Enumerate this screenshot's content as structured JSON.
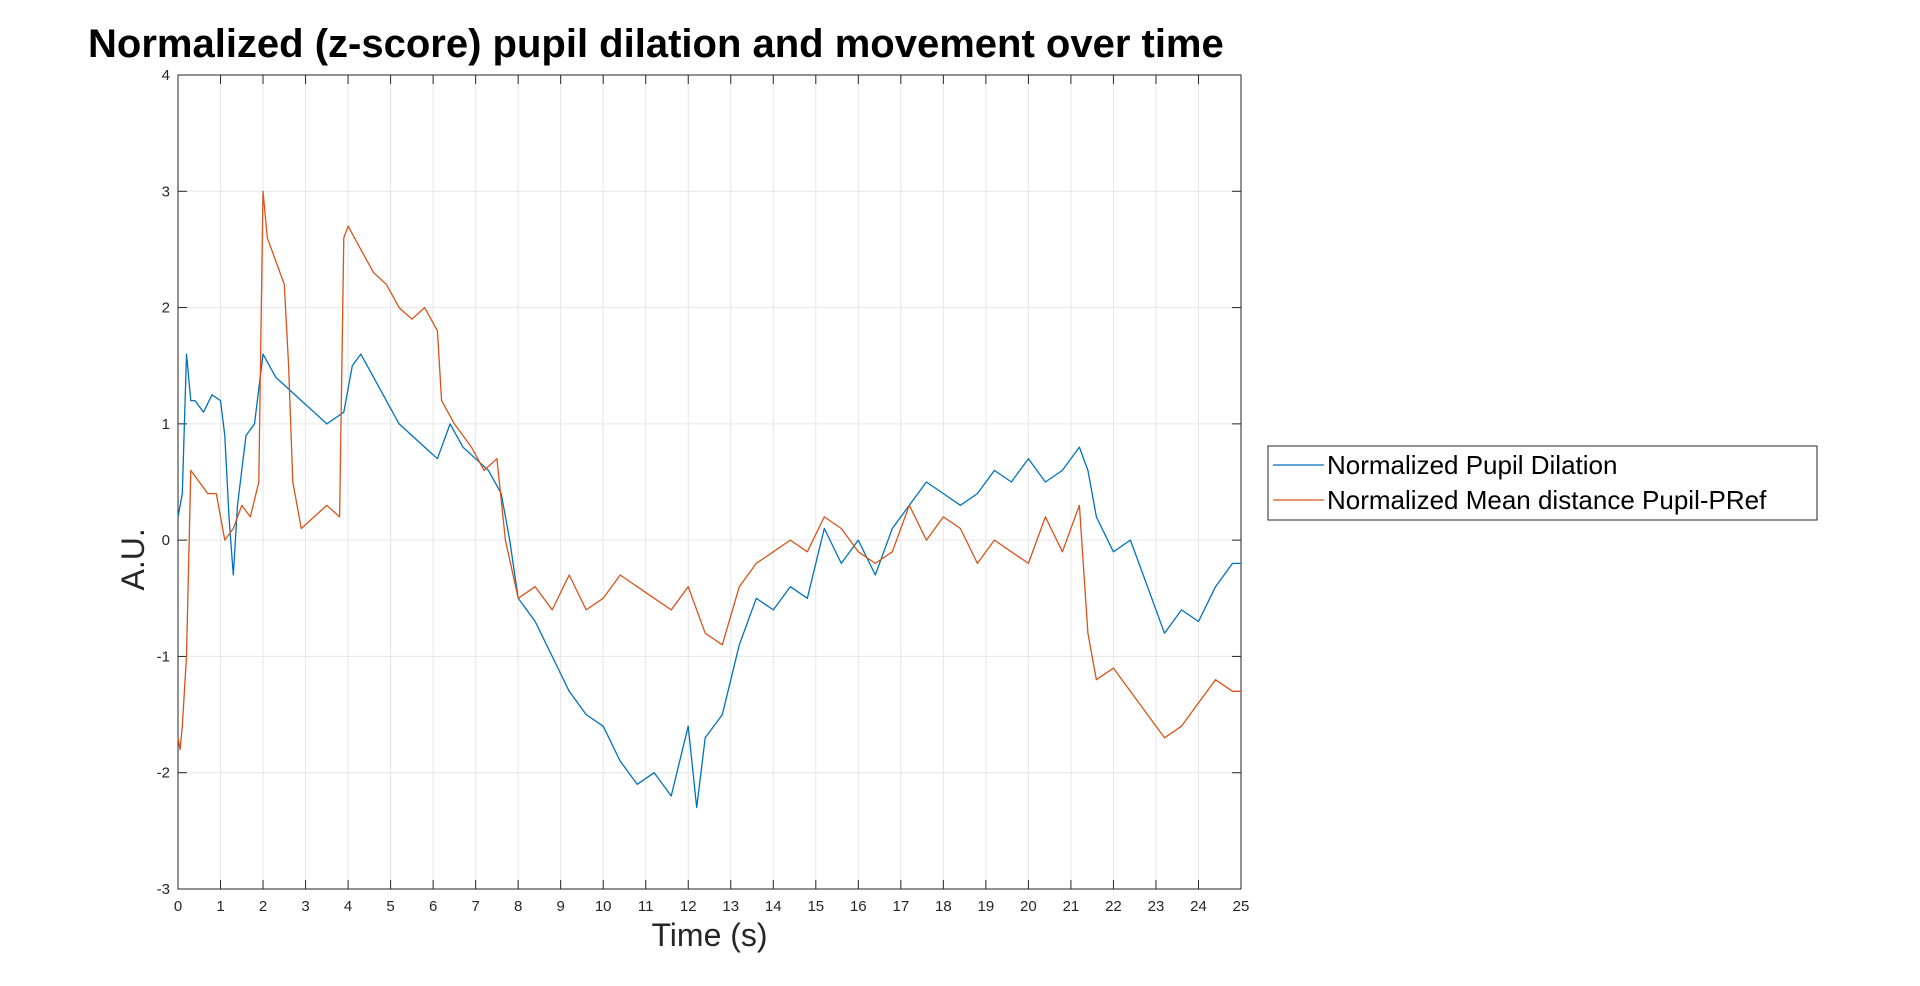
{
  "chart_data": {
    "type": "line",
    "title": "Normalized (z-score) pupil dilation and movement over time",
    "xlabel": "Time (s)",
    "ylabel": "A.U.",
    "xlim": [
      0,
      25
    ],
    "ylim": [
      -3,
      4
    ],
    "xticks": [
      0,
      1,
      2,
      3,
      4,
      5,
      6,
      7,
      8,
      9,
      10,
      11,
      12,
      13,
      14,
      15,
      16,
      17,
      18,
      19,
      20,
      21,
      22,
      23,
      24,
      25
    ],
    "yticks": [
      -3,
      -2,
      -1,
      0,
      1,
      2,
      3,
      4
    ],
    "grid": true,
    "legend_position": "outside-right",
    "series": [
      {
        "name": "Normalized Pupil Dilation",
        "color": "#0072BD",
        "x": [
          0,
          0.1,
          0.2,
          0.3,
          0.4,
          0.6,
          0.8,
          1.0,
          1.1,
          1.2,
          1.3,
          1.4,
          1.6,
          1.8,
          2.0,
          2.3,
          2.6,
          2.9,
          3.2,
          3.5,
          3.9,
          4.1,
          4.3,
          4.6,
          4.9,
          5.2,
          5.5,
          5.8,
          6.1,
          6.4,
          6.7,
          7.0,
          7.3,
          7.6,
          7.8,
          8.0,
          8.4,
          8.8,
          9.2,
          9.6,
          10.0,
          10.4,
          10.8,
          11.2,
          11.6,
          12.0,
          12.2,
          12.4,
          12.8,
          13.2,
          13.6,
          14.0,
          14.4,
          14.8,
          15.2,
          15.6,
          16.0,
          16.4,
          16.8,
          17.2,
          17.6,
          18.0,
          18.4,
          18.8,
          19.2,
          19.6,
          20.0,
          20.4,
          20.8,
          21.2,
          21.4,
          21.6,
          22.0,
          22.4,
          22.8,
          23.2,
          23.6,
          24.0,
          24.4,
          24.8,
          25.0
        ],
        "y": [
          0.2,
          0.4,
          1.6,
          1.2,
          1.2,
          1.1,
          1.25,
          1.2,
          0.9,
          0.2,
          -0.3,
          0.3,
          0.9,
          1.0,
          1.6,
          1.4,
          1.3,
          1.2,
          1.1,
          1.0,
          1.1,
          1.5,
          1.6,
          1.4,
          1.2,
          1.0,
          0.9,
          0.8,
          0.7,
          1.0,
          0.8,
          0.7,
          0.6,
          0.4,
          0.0,
          -0.5,
          -0.7,
          -1.0,
          -1.3,
          -1.5,
          -1.6,
          -1.9,
          -2.1,
          -2.0,
          -2.2,
          -1.6,
          -2.3,
          -1.7,
          -1.5,
          -0.9,
          -0.5,
          -0.6,
          -0.4,
          -0.5,
          0.1,
          -0.2,
          0.0,
          -0.3,
          0.1,
          0.3,
          0.5,
          0.4,
          0.3,
          0.4,
          0.6,
          0.5,
          0.7,
          0.5,
          0.6,
          0.8,
          0.6,
          0.2,
          -0.1,
          0.0,
          -0.4,
          -0.8,
          -0.6,
          -0.7,
          -0.4,
          -0.2,
          -0.2
        ]
      },
      {
        "name": "Normalized Mean distance Pupil-PRef",
        "color": "#D95319",
        "x": [
          0,
          0.05,
          0.1,
          0.2,
          0.3,
          0.5,
          0.7,
          0.9,
          1.1,
          1.3,
          1.5,
          1.7,
          1.9,
          2.0,
          2.1,
          2.3,
          2.5,
          2.6,
          2.7,
          2.9,
          3.2,
          3.5,
          3.8,
          3.9,
          4.0,
          4.3,
          4.6,
          4.9,
          5.2,
          5.5,
          5.8,
          6.1,
          6.2,
          6.5,
          6.9,
          7.2,
          7.5,
          7.7,
          8.0,
          8.4,
          8.8,
          9.2,
          9.6,
          10.0,
          10.4,
          10.8,
          11.2,
          11.6,
          12.0,
          12.4,
          12.8,
          13.2,
          13.6,
          14.0,
          14.4,
          14.8,
          15.2,
          15.6,
          16.0,
          16.4,
          16.8,
          17.2,
          17.6,
          18.0,
          18.4,
          18.8,
          19.2,
          19.6,
          20.0,
          20.4,
          20.8,
          21.2,
          21.4,
          21.6,
          22.0,
          22.4,
          22.8,
          23.2,
          23.6,
          24.0,
          24.4,
          24.8,
          25.0
        ],
        "y": [
          -1.7,
          -1.8,
          -1.6,
          -1.0,
          0.6,
          0.5,
          0.4,
          0.4,
          0.0,
          0.1,
          0.3,
          0.2,
          0.5,
          3.0,
          2.6,
          2.4,
          2.2,
          1.5,
          0.5,
          0.1,
          0.2,
          0.3,
          0.2,
          2.6,
          2.7,
          2.5,
          2.3,
          2.2,
          2.0,
          1.9,
          2.0,
          1.8,
          1.2,
          1.0,
          0.8,
          0.6,
          0.7,
          0.0,
          -0.5,
          -0.4,
          -0.6,
          -0.3,
          -0.6,
          -0.5,
          -0.3,
          -0.4,
          -0.5,
          -0.6,
          -0.4,
          -0.8,
          -0.9,
          -0.4,
          -0.2,
          -0.1,
          0.0,
          -0.1,
          0.2,
          0.1,
          -0.1,
          -0.2,
          -0.1,
          0.3,
          0.0,
          0.2,
          0.1,
          -0.2,
          0.0,
          -0.1,
          -0.2,
          0.2,
          -0.1,
          0.3,
          -0.8,
          -1.2,
          -1.1,
          -1.3,
          -1.5,
          -1.7,
          -1.6,
          -1.4,
          -1.2,
          -1.3,
          -1.3
        ]
      }
    ]
  }
}
